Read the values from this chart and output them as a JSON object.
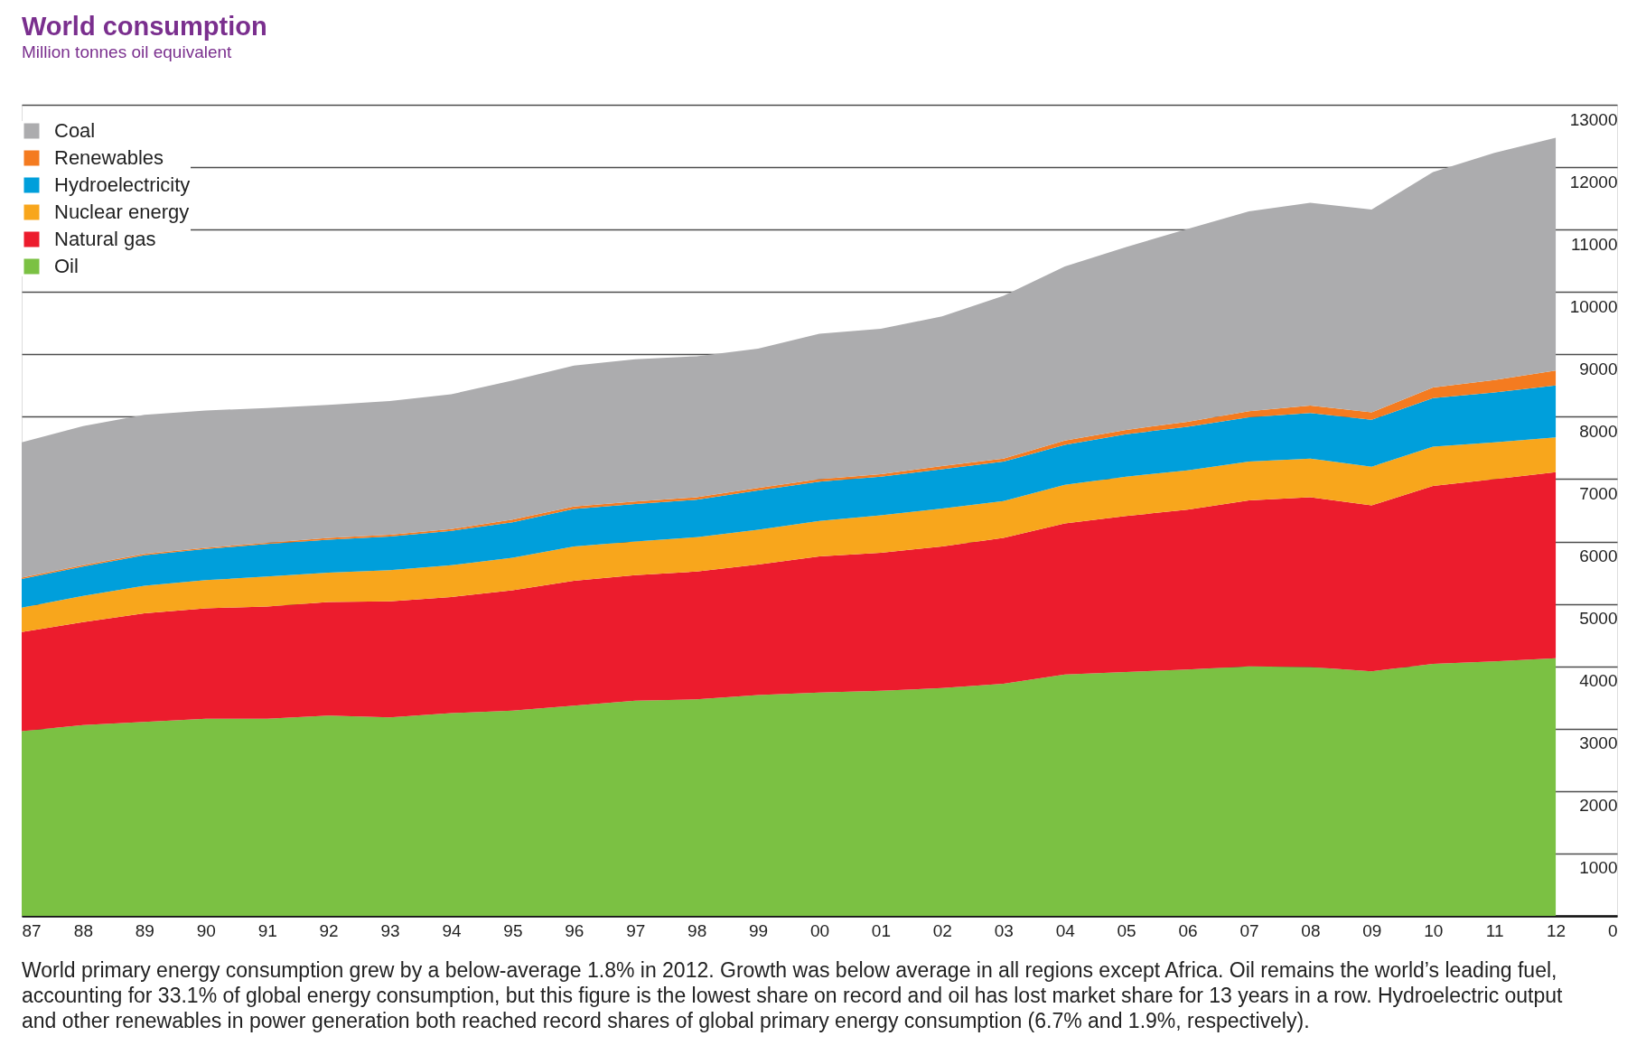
{
  "chart_data": {
    "type": "area",
    "title": "World consumption",
    "subtitle": "Million tonnes oil equivalent",
    "categories": [
      "87",
      "88",
      "89",
      "90",
      "91",
      "92",
      "93",
      "94",
      "95",
      "96",
      "97",
      "98",
      "99",
      "00",
      "01",
      "02",
      "03",
      "04",
      "05",
      "06",
      "07",
      "08",
      "09",
      "10",
      "11",
      "12"
    ],
    "series": [
      {
        "name": "Oil",
        "color": "#7bc143",
        "values": [
          2960,
          3060,
          3110,
          3160,
          3160,
          3210,
          3180,
          3250,
          3290,
          3370,
          3450,
          3470,
          3540,
          3580,
          3610,
          3650,
          3720,
          3870,
          3910,
          3950,
          4000,
          3990,
          3920,
          4040,
          4080,
          4130
        ]
      },
      {
        "name": "Natural gas",
        "color": "#ec1c2d",
        "values": [
          1590,
          1650,
          1740,
          1770,
          1800,
          1820,
          1860,
          1860,
          1930,
          2000,
          2010,
          2050,
          2090,
          2180,
          2210,
          2270,
          2340,
          2420,
          2500,
          2560,
          2660,
          2720,
          2660,
          2850,
          2920,
          2980
        ]
      },
      {
        "name": "Nuclear energy",
        "color": "#f8a61c",
        "values": [
          390,
          420,
          440,
          450,
          480,
          470,
          500,
          510,
          520,
          550,
          540,
          550,
          560,
          570,
          600,
          610,
          590,
          620,
          630,
          630,
          620,
          620,
          620,
          630,
          590,
          560
        ]
      },
      {
        "name": "Hydroelectricity",
        "color": "#009fdb",
        "values": [
          460,
          470,
          490,
          500,
          520,
          530,
          540,
          550,
          570,
          600,
          600,
          600,
          630,
          630,
          620,
          630,
          630,
          640,
          680,
          700,
          710,
          730,
          750,
          780,
          800,
          830
        ]
      },
      {
        "name": "Renewables",
        "color": "#f47b20",
        "values": [
          20,
          20,
          20,
          20,
          20,
          30,
          30,
          30,
          40,
          40,
          40,
          40,
          40,
          40,
          40,
          50,
          50,
          70,
          70,
          80,
          100,
          120,
          120,
          170,
          200,
          240
        ]
      },
      {
        "name": "Coal",
        "color": "#acacae",
        "values": [
          2170,
          2230,
          2230,
          2200,
          2160,
          2130,
          2140,
          2160,
          2230,
          2260,
          2280,
          2260,
          2230,
          2330,
          2330,
          2400,
          2610,
          2790,
          2930,
          3090,
          3200,
          3250,
          3250,
          3450,
          3640,
          3730
        ]
      }
    ],
    "stacked": true,
    "ylim": [
      0,
      13000
    ],
    "yticks": [
      0,
      1000,
      2000,
      3000,
      4000,
      5000,
      6000,
      7000,
      8000,
      9000,
      10000,
      11000,
      12000,
      13000
    ],
    "grid": "y",
    "legend": "top left",
    "annotations": [
      "World primary energy consumption grew by a below-average 1.8% in 2012. Growth was below average in all regions except Africa. Oil remains the world’s leading fuel, accounting for 33.1% of global energy consumption, but this figure is the lowest share on record and oil has lost market share for 13 years in a row. Hydroelectric output and other renewables in power generation both reached record shares of global primary energy consumption (6.7% and 1.9%, respectively)."
    ]
  }
}
